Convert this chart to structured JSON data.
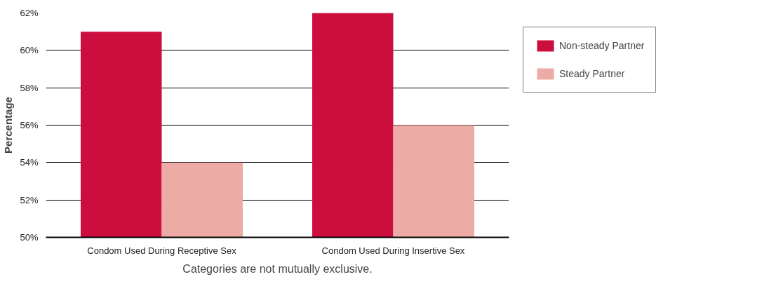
{
  "chart_data": {
    "type": "bar",
    "ylabel": "Percentage",
    "categories": [
      "Condom Used During Receptive Sex",
      "Condom Used During Insertive Sex"
    ],
    "series": [
      {
        "name": "Non-steady Partner",
        "color": "#cc0e3f",
        "values": [
          61,
          62
        ]
      },
      {
        "name": "Steady Partner",
        "color": "#ecaba5",
        "values": [
          54,
          56
        ]
      }
    ],
    "ylim": [
      50,
      62
    ],
    "yticks": [
      {
        "value": 50,
        "label": "50%"
      },
      {
        "value": 52,
        "label": "52%"
      },
      {
        "value": 54,
        "label": "54%"
      },
      {
        "value": 56,
        "label": "56%"
      },
      {
        "value": 58,
        "label": "58%"
      },
      {
        "value": 60,
        "label": "60%"
      },
      {
        "value": 62,
        "label": "62%"
      }
    ],
    "grid": "y",
    "legend": "right",
    "annotations": [
      "Categories are not mutually exclusive."
    ]
  }
}
